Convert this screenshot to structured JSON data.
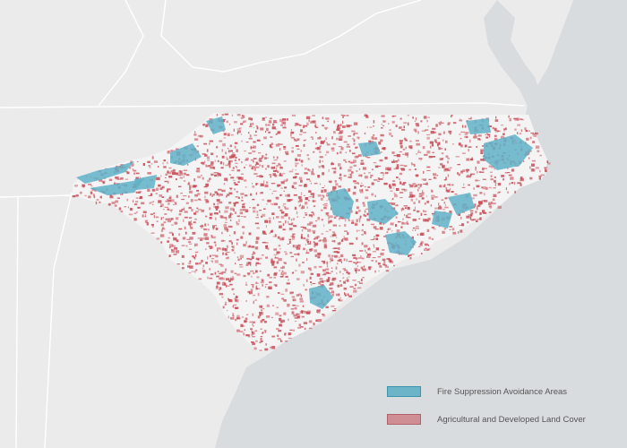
{
  "map": {
    "colors": {
      "ocean": "#d9dcde",
      "land": "#ebebeb",
      "state_border": "#ffffff",
      "nc_fill": "#f4f4f4",
      "fire_suppression": "#5fb0c7",
      "fire_suppression_border": "#3c94ad",
      "agricultural": "#c64a55",
      "agricultural_swatch": "#cf8e94",
      "agricultural_swatch_border": "#b3606a"
    }
  },
  "legend": {
    "items": [
      {
        "label": "Fire Suppression Avoidance Areas",
        "swatch": "fire_suppression"
      },
      {
        "label": "Agricultural and Developed Land Cover",
        "swatch": "agricultural"
      }
    ]
  }
}
